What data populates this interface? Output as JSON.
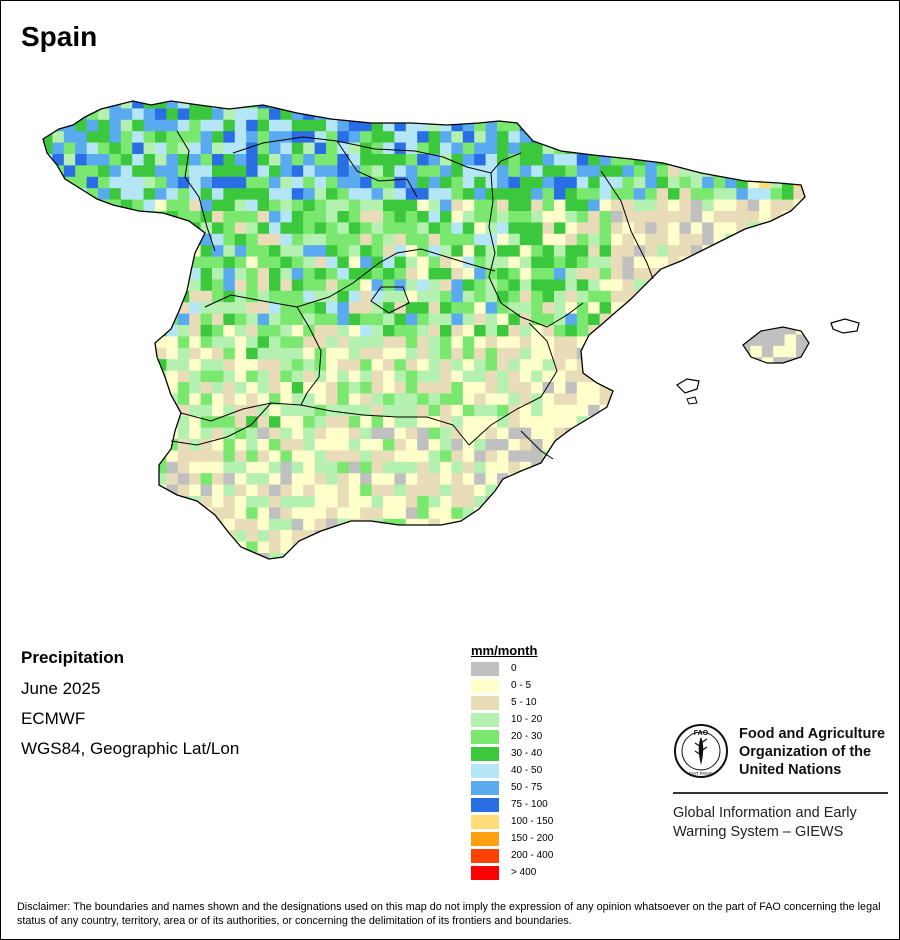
{
  "title": "Spain",
  "meta": {
    "variable": "Precipitation",
    "period": "June 2025",
    "source": "ECMWF",
    "projection": "WGS84, Geographic Lat/Lon"
  },
  "legend": {
    "title": "mm/month",
    "classes": [
      {
        "label": "0",
        "color": "#C0C0C0"
      },
      {
        "label": "0 - 5",
        "color": "#FFFFCC"
      },
      {
        "label": "5 - 10",
        "color": "#E8DDB8"
      },
      {
        "label": "10 - 20",
        "color": "#B4F0B0"
      },
      {
        "label": "20 - 30",
        "color": "#7AE86E"
      },
      {
        "label": "30 - 40",
        "color": "#3CC83C"
      },
      {
        "label": "40 - 50",
        "color": "#B4E6F5"
      },
      {
        "label": "50 - 75",
        "color": "#5AAAF0"
      },
      {
        "label": "75 - 100",
        "color": "#2A6EE6"
      },
      {
        "label": "100 - 150",
        "color": "#FFDC78"
      },
      {
        "label": "150 - 200",
        "color": "#FFA010"
      },
      {
        "label": "200 - 400",
        "color": "#FF4000"
      },
      {
        "label": "> 400",
        "color": "#FF0000"
      }
    ]
  },
  "organization": {
    "name_line1": "Food and Agriculture",
    "name_line2": "Organization of the",
    "name_line3": "United Nations",
    "logo_text": "FAO",
    "logo_motto": "FIAT PANIS",
    "system_line1": "Global Information and Early",
    "system_line2": "Warning System – GIEWS"
  },
  "disclaimer": "Disclaimer: The boundaries and names shown and the designations used on this map do not imply the expression of any opinion whatsoever on the part of FAO concerning the legal status of any country, territory, area or of its authorities, or concerning the delimitation of its frontiers and boundaries."
}
